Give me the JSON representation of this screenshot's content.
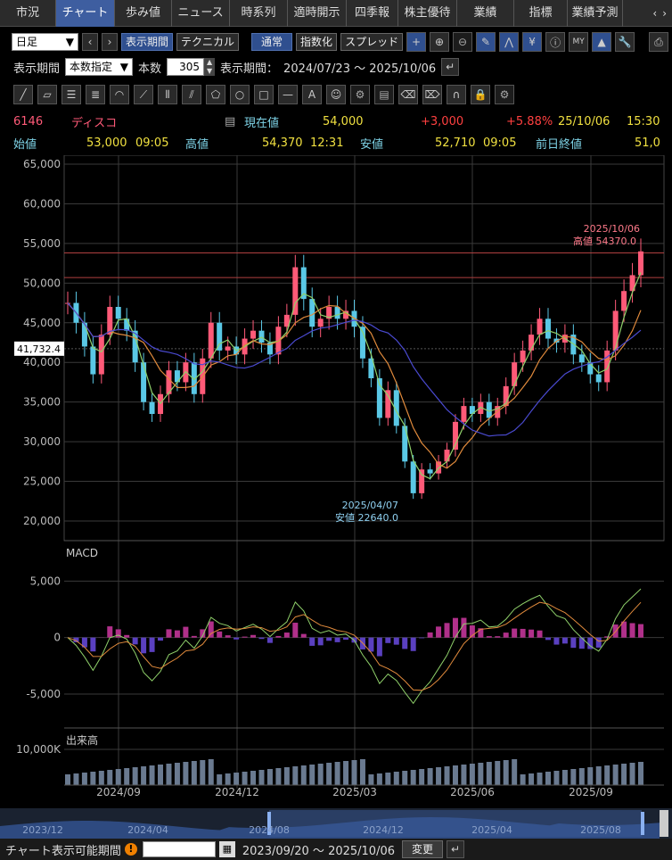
{
  "tabs": [
    "市況",
    "チャート",
    "歩み値",
    "ニュース",
    "時系列",
    "適時開示",
    "四季報",
    "株主優待",
    "業績",
    "指標",
    "業績予測"
  ],
  "active_tab": 1,
  "toolbar1": {
    "period_select": "日足",
    "display_period": "表示期間",
    "technical": "テクニカル",
    "normal": "通常",
    "index": "指数化",
    "spread": "スプレッド"
  },
  "toolbar2": {
    "label_period": "表示期間",
    "period_mode": "本数指定",
    "label_count": "本数",
    "count": "305",
    "range_label": "表示期間：",
    "range": "2024/07/23 ～ 2025/10/06"
  },
  "quote": {
    "code": "6146",
    "name": "ディスコ",
    "current_label": "現在値",
    "current": "54,000",
    "change": "+3,000",
    "change_pct": "+5.88%",
    "date": "25/10/06",
    "time": "15:30",
    "open_label": "始値",
    "open": "53,000",
    "open_time": "09:05",
    "high_label": "高値",
    "high": "54,370",
    "high_time": "12:31",
    "low_label": "安値",
    "low": "52,710",
    "low_time": "09:05",
    "prev_label": "前日終値",
    "prev": "51,0"
  },
  "chart_data": {
    "type": "candlestick",
    "price_axis": [
      65000,
      60000,
      55000,
      50000,
      45000,
      40000,
      35000,
      30000,
      25000,
      20000
    ],
    "price_ticks": [
      "65,000",
      "60,000",
      "55,000",
      "50,000",
      "45,000",
      "40,000",
      "35,000",
      "30,000",
      "25,000",
      "20,000"
    ],
    "ylim": [
      20000,
      65000
    ],
    "crosshair_label": "41,732.4",
    "annotation_high": {
      "date": "2025/10/06",
      "text": "高値 54370.0"
    },
    "annotation_low": {
      "date": "2025/04/07",
      "text": "安値 22640.0"
    },
    "x_labels": [
      "2024/09",
      "2024/12",
      "2025/03",
      "2025/06",
      "2025/09"
    ],
    "close_series": [
      [
        "2024/07/23",
        47500
      ],
      [
        "2024/07/26",
        45000
      ],
      [
        "2024/08/01",
        42000
      ],
      [
        "2024/08/05",
        38500
      ],
      [
        "2024/08/09",
        43500
      ],
      [
        "2024/08/15",
        47000
      ],
      [
        "2024/08/22",
        45500
      ],
      [
        "2024/08/29",
        44000
      ],
      [
        "2024/09/04",
        40000
      ],
      [
        "2024/09/10",
        35000
      ],
      [
        "2024/09/13",
        33500
      ],
      [
        "2024/09/20",
        36000
      ],
      [
        "2024/09/27",
        39000
      ],
      [
        "2024/10/03",
        37500
      ],
      [
        "2024/10/10",
        40000
      ],
      [
        "2024/10/17",
        36000
      ],
      [
        "2024/10/24",
        40500
      ],
      [
        "2024/10/31",
        45000
      ],
      [
        "2024/11/07",
        41500
      ],
      [
        "2024/11/14",
        42000
      ],
      [
        "2024/11/21",
        41000
      ],
      [
        "2024/11/28",
        43000
      ],
      [
        "2024/12/05",
        44000
      ],
      [
        "2024/12/12",
        42500
      ],
      [
        "2024/12/19",
        41000
      ],
      [
        "2024/12/26",
        44500
      ],
      [
        "2025/01/06",
        46000
      ],
      [
        "2025/01/09",
        52000
      ],
      [
        "2025/01/14",
        48000
      ],
      [
        "2025/01/17",
        44500
      ],
      [
        "2025/01/24",
        45500
      ],
      [
        "2025/01/31",
        47000
      ],
      [
        "2025/02/07",
        45500
      ],
      [
        "2025/02/14",
        46500
      ],
      [
        "2025/02/21",
        44500
      ],
      [
        "2025/02/28",
        40500
      ],
      [
        "2025/03/06",
        38000
      ],
      [
        "2025/03/13",
        33000
      ],
      [
        "2025/03/21",
        36500
      ],
      [
        "2025/03/28",
        32000
      ],
      [
        "2025/04/04",
        27500
      ],
      [
        "2025/04/07",
        23500
      ],
      [
        "2025/04/11",
        26500
      ],
      [
        "2025/04/18",
        26000
      ],
      [
        "2025/04/25",
        27500
      ],
      [
        "2025/05/02",
        29000
      ],
      [
        "2025/05/09",
        32500
      ],
      [
        "2025/05/16",
        34500
      ],
      [
        "2025/05/23",
        33500
      ],
      [
        "2025/05/30",
        35000
      ],
      [
        "2025/06/06",
        33000
      ],
      [
        "2025/06/13",
        34500
      ],
      [
        "2025/06/20",
        37000
      ],
      [
        "2025/06/27",
        40000
      ],
      [
        "2025/07/04",
        41500
      ],
      [
        "2025/07/11",
        43500
      ],
      [
        "2025/07/18",
        45500
      ],
      [
        "2025/07/25",
        43000
      ],
      [
        "2025/08/01",
        42500
      ],
      [
        "2025/08/08",
        43500
      ],
      [
        "2025/08/15",
        41000
      ],
      [
        "2025/08/22",
        40000
      ],
      [
        "2025/08/29",
        38500
      ],
      [
        "2025/09/05",
        37500
      ],
      [
        "2025/09/12",
        41500
      ],
      [
        "2025/09/19",
        46500
      ],
      [
        "2025/09/26",
        49000
      ],
      [
        "2025/10/03",
        51000
      ],
      [
        "2025/10/06",
        54000
      ]
    ],
    "macd": {
      "title": "MACD",
      "ticks": [
        "5,000",
        "0",
        "-5,000"
      ],
      "ylim": [
        -8000,
        7000
      ]
    },
    "volume": {
      "title": "出来高",
      "ticks": [
        "10,000K"
      ]
    }
  },
  "timebar": {
    "labels": [
      "2023/12",
      "2024/04",
      "2024/08",
      "2024/12",
      "2025/04",
      "2025/08"
    ]
  },
  "bottom": {
    "label": "チャート表示可能期間",
    "range": "2023/09/20 ～ 2025/10/06",
    "change_btn": "変更"
  },
  "colors": {
    "up": "#ff5a78",
    "down": "#5ac8e6",
    "ma_fast": "#8fd06a",
    "ma_mid": "#e08a3c",
    "ma_slow": "#4a4ad0",
    "macd_pos": "#b0308a",
    "macd_neg": "#5a40c0"
  }
}
